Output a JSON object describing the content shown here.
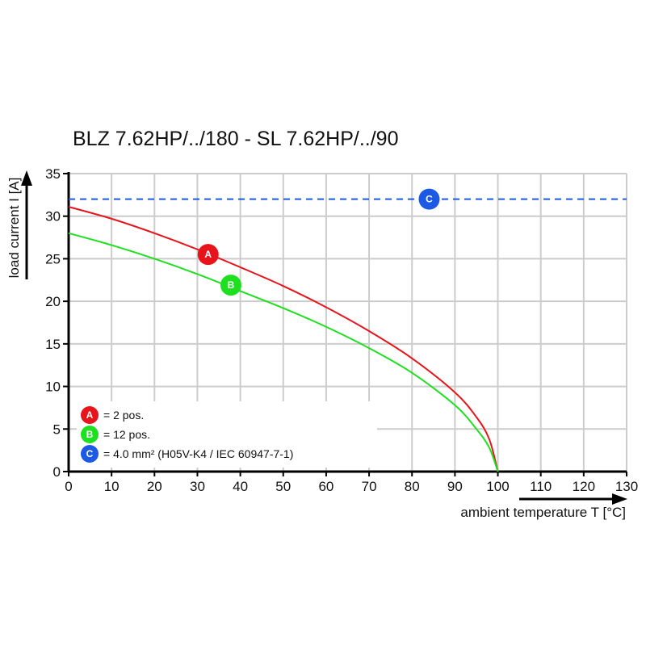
{
  "chart_data": {
    "type": "line",
    "title": "BLZ 7.62HP/../180 - SL 7.62HP/../90",
    "xlabel": "ambient temperature T [°C]",
    "ylabel": "load current I [A]",
    "xlim": [
      0,
      130
    ],
    "ylim": [
      0,
      35
    ],
    "xticks": [
      "0",
      "10",
      "20",
      "30",
      "40",
      "50",
      "60",
      "70",
      "80",
      "90",
      "100",
      "110",
      "120",
      "130"
    ],
    "yticks": [
      "0",
      "5",
      "10",
      "15",
      "20",
      "25",
      "30",
      "35"
    ],
    "grid": true,
    "series": [
      {
        "marker": "A",
        "color": "#e8141b",
        "x": [
          0,
          10,
          20,
          30,
          40,
          50,
          60,
          70,
          80,
          90,
          95,
          98,
          100
        ],
        "y": [
          31.1,
          29.7,
          28.0,
          26.1,
          24.0,
          21.8,
          19.3,
          16.5,
          13.3,
          9.3,
          6.4,
          3.8,
          0
        ]
      },
      {
        "marker": "B",
        "color": "#1fe01f",
        "x": [
          0,
          10,
          20,
          30,
          40,
          50,
          60,
          70,
          80,
          90,
          95,
          98,
          100
        ],
        "y": [
          28.0,
          26.6,
          25.0,
          23.2,
          21.2,
          19.2,
          17.0,
          14.5,
          11.6,
          7.8,
          5.0,
          2.8,
          0
        ]
      },
      {
        "marker": "C",
        "color": "#1c5ae6",
        "dashed": true,
        "x": [
          0,
          130
        ],
        "y": [
          32,
          32
        ]
      }
    ],
    "marker_positions": [
      {
        "label": "A",
        "x": 32.5,
        "y": 25.5,
        "color": "#e8141b"
      },
      {
        "label": "B",
        "x": 37.8,
        "y": 21.9,
        "color": "#1fe01f"
      },
      {
        "label": "C",
        "x": 84,
        "y": 32,
        "color": "#1c5ae6"
      }
    ],
    "legend": [
      {
        "label": "A",
        "text": "= 2 pos.",
        "color": "#e8141b"
      },
      {
        "label": "B",
        "text": "= 12 pos.",
        "color": "#1fe01f"
      },
      {
        "label": "C",
        "text": "= 4.0 mm² (H05V-K4 / IEC 60947-7-1)",
        "color": "#1c5ae6"
      }
    ],
    "legend_position": "bottom-left"
  }
}
